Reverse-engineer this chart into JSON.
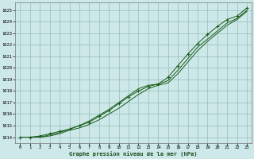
{
  "bg_color": "#cce8e8",
  "grid_color": "#99bbbb",
  "line_color": "#1a5c1a",
  "marker_color": "#1a5c1a",
  "title": "Graphe pression niveau de la mer (hPa)",
  "xlim": [
    -0.5,
    23.5
  ],
  "ylim": [
    1013.5,
    1025.7
  ],
  "yticks": [
    1014,
    1015,
    1016,
    1017,
    1018,
    1019,
    1020,
    1021,
    1022,
    1023,
    1024,
    1025
  ],
  "xticks": [
    0,
    1,
    2,
    3,
    4,
    5,
    6,
    7,
    8,
    9,
    10,
    11,
    12,
    13,
    14,
    15,
    16,
    17,
    18,
    19,
    20,
    21,
    22,
    23
  ],
  "series1_x": [
    0,
    1,
    2,
    3,
    4,
    5,
    6,
    7,
    8,
    9,
    10,
    11,
    12,
    13,
    14,
    15,
    16,
    17,
    18,
    19,
    20,
    21,
    22,
    23
  ],
  "series1_y": [
    1014.0,
    1014.0,
    1014.1,
    1014.3,
    1014.5,
    1014.7,
    1015.0,
    1015.3,
    1015.8,
    1016.3,
    1016.9,
    1017.5,
    1018.0,
    1018.4,
    1018.6,
    1019.2,
    1020.2,
    1021.2,
    1022.1,
    1022.9,
    1023.6,
    1024.2,
    1024.5,
    1025.2
  ],
  "series2_x": [
    0,
    1,
    2,
    3,
    4,
    5,
    6,
    7,
    8,
    9,
    10,
    11,
    12,
    13,
    14,
    15,
    16,
    17,
    18,
    19,
    20,
    21,
    22,
    23
  ],
  "series2_y": [
    1014.0,
    1014.0,
    1014.0,
    1014.1,
    1014.3,
    1014.6,
    1014.8,
    1015.1,
    1015.5,
    1016.0,
    1016.5,
    1017.1,
    1017.7,
    1018.2,
    1018.5,
    1018.7,
    1019.5,
    1020.5,
    1021.5,
    1022.3,
    1023.0,
    1023.7,
    1024.2,
    1024.9
  ],
  "series3_x": [
    0,
    1,
    2,
    3,
    4,
    5,
    6,
    7,
    8,
    9,
    10,
    11,
    12,
    13,
    14,
    15,
    16,
    17,
    18,
    19,
    20,
    21,
    22,
    23
  ],
  "series3_y": [
    1014.0,
    1014.0,
    1014.0,
    1014.2,
    1014.4,
    1014.7,
    1015.0,
    1015.4,
    1015.9,
    1016.4,
    1017.0,
    1017.6,
    1018.2,
    1018.5,
    1018.6,
    1018.9,
    1019.8,
    1020.8,
    1021.8,
    1022.5,
    1023.2,
    1023.9,
    1024.3,
    1025.0
  ]
}
